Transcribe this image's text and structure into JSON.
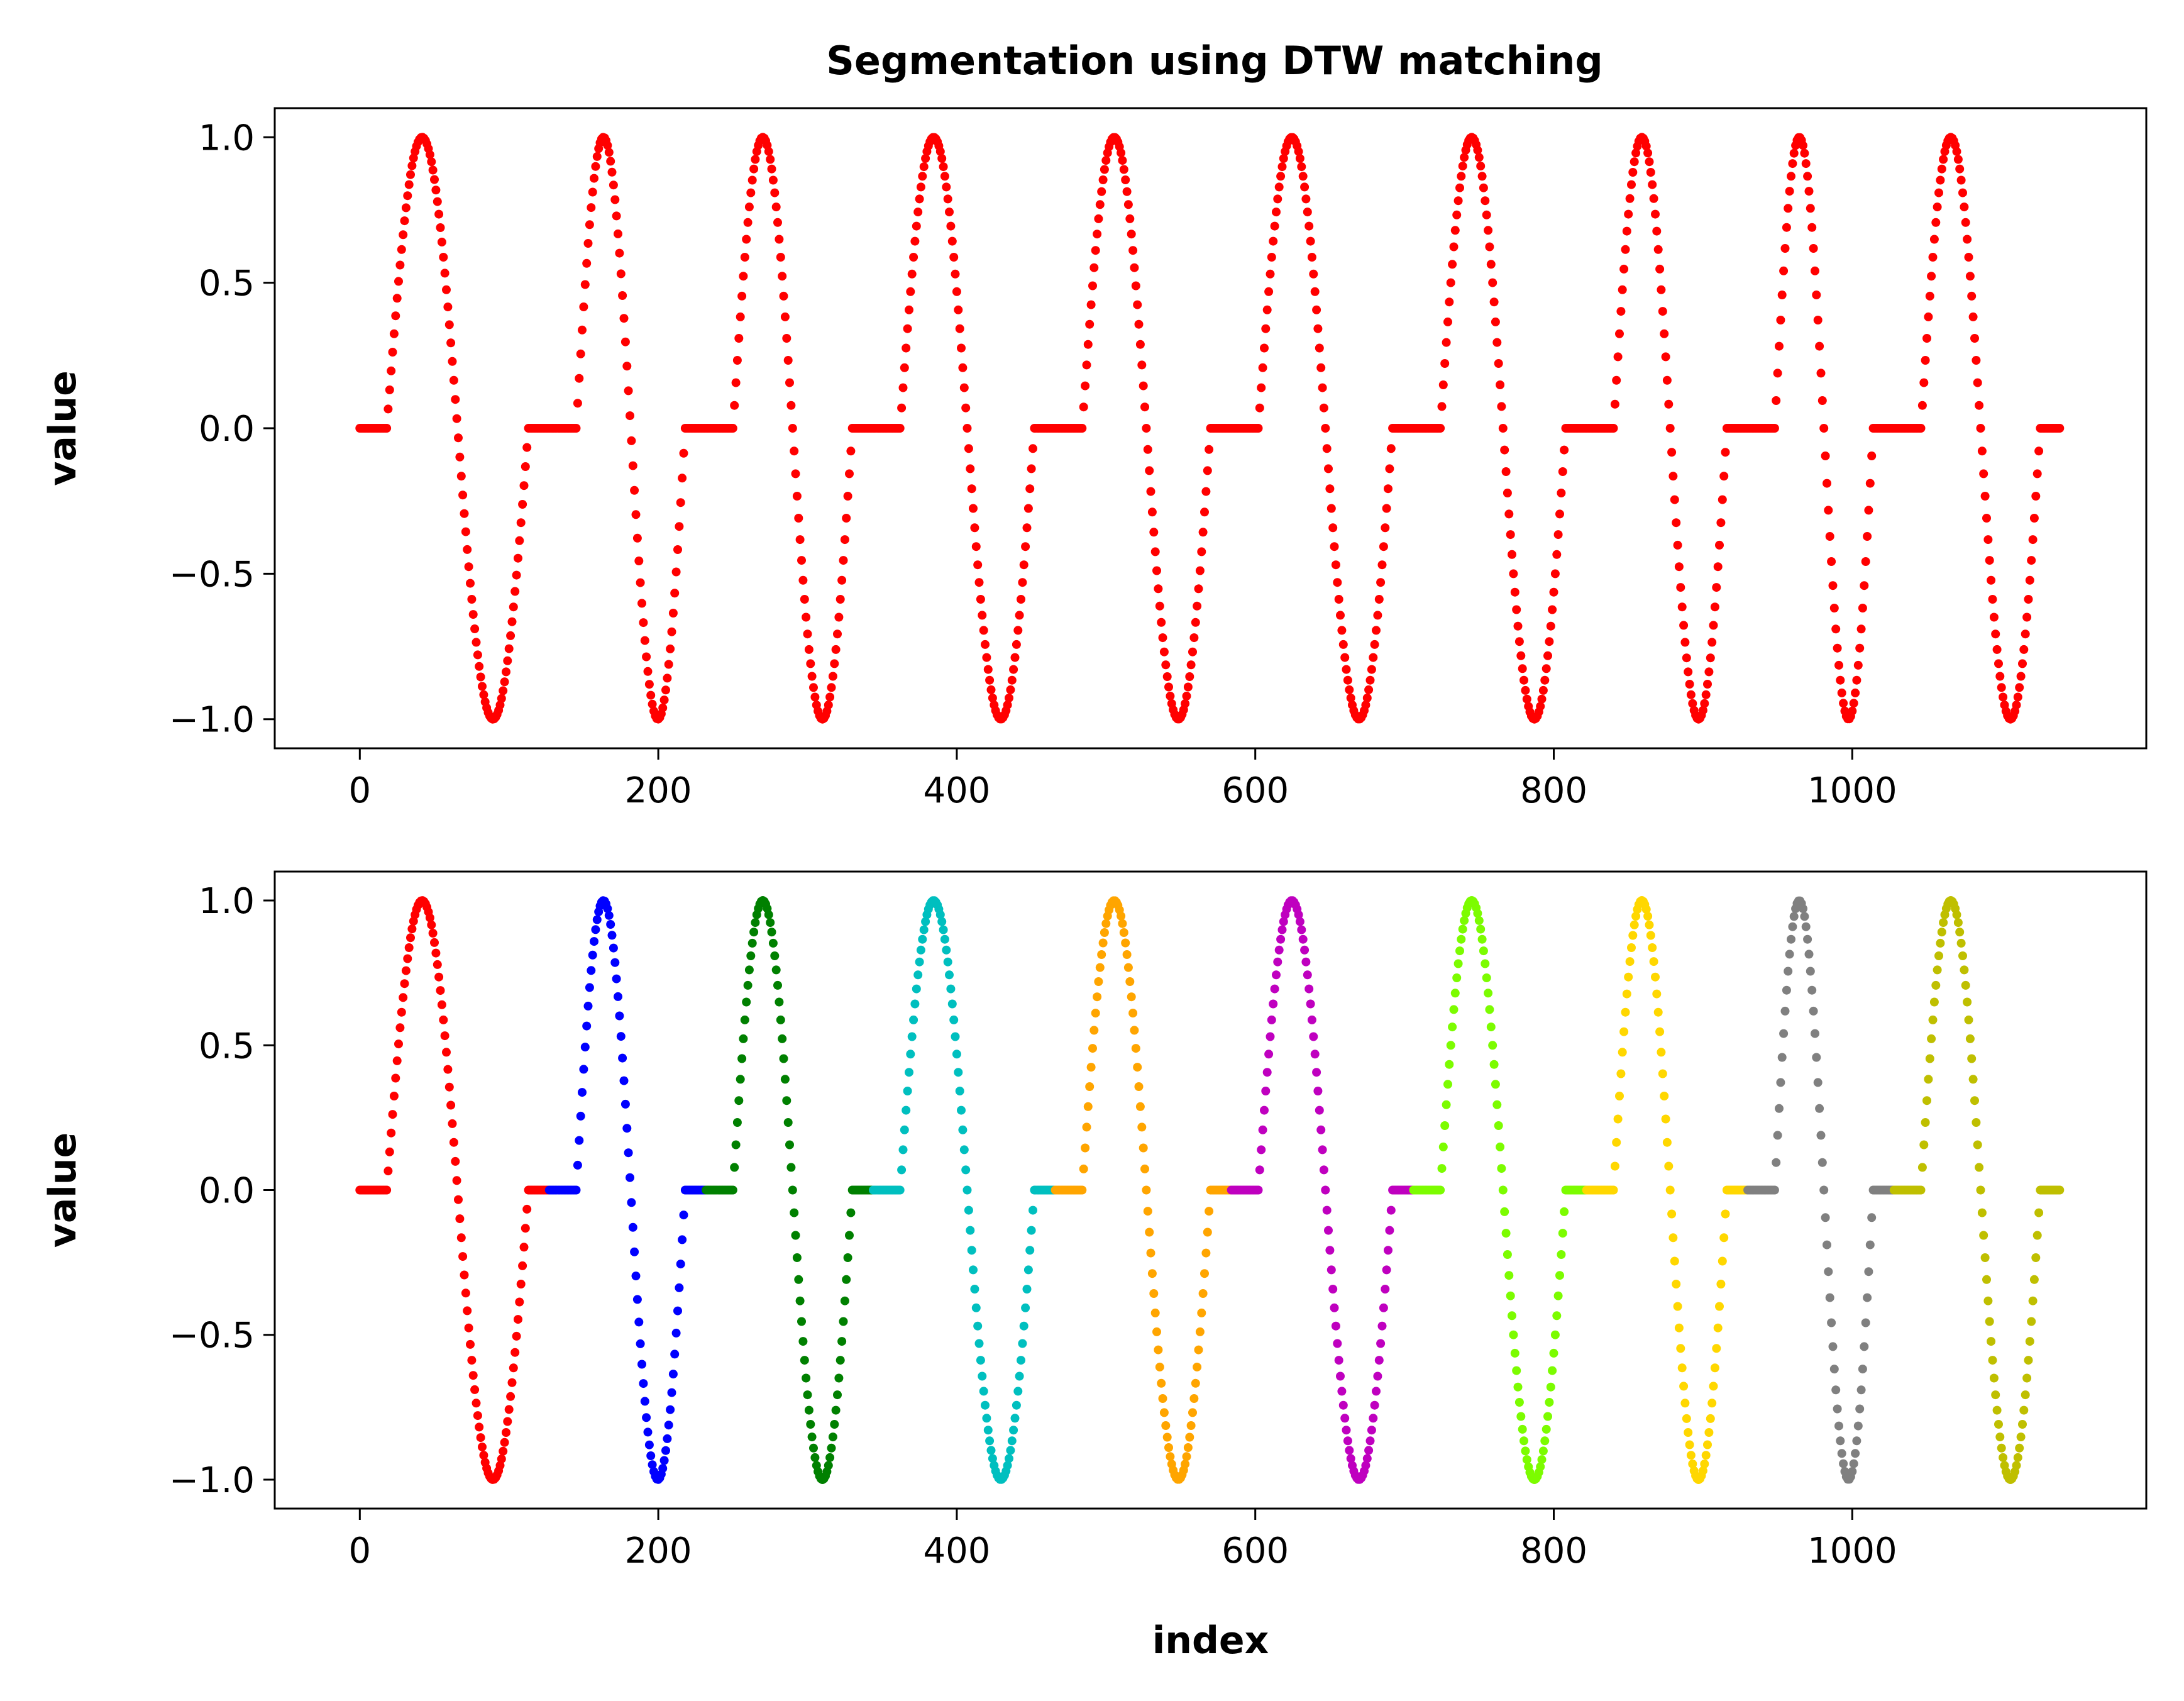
{
  "chart_data": {
    "type": "scatter",
    "title": "Segmentation using DTW matching",
    "n_segments": 10,
    "segment_template": {
      "flat_start_len": 14,
      "ramp_points": 4,
      "sine_points": 80,
      "flat_end_len": 14,
      "baseline_value": 0.0,
      "amplitude": 1.0,
      "note": "Each segment: flat 0.0 plateau, short rise, one full sine cycle (peak 1.0, trough -1.0), flat 0.0 plateau"
    },
    "segments": [
      {
        "start": 0,
        "end": 127,
        "peak_x": 38,
        "trough_x": 80,
        "color": "#ff0000"
      },
      {
        "start": 127,
        "end": 232,
        "peak_x": 147,
        "trough_x": 187,
        "color": "#0000ff"
      },
      {
        "start": 232,
        "end": 344,
        "peak_x": 252,
        "trough_x": 294,
        "color": "#008000"
      },
      {
        "start": 344,
        "end": 466,
        "peak_x": 369,
        "trough_x": 416,
        "color": "#00bfbf"
      },
      {
        "start": 466,
        "end": 584,
        "peak_x": 489,
        "trough_x": 532,
        "color": "#ffa500"
      },
      {
        "start": 584,
        "end": 706,
        "peak_x": 606,
        "trough_x": 651,
        "color": "#bf00bf"
      },
      {
        "start": 706,
        "end": 822,
        "peak_x": 731,
        "trough_x": 774,
        "color": "#7cfc00"
      },
      {
        "start": 822,
        "end": 930,
        "peak_x": 845,
        "trough_x": 883,
        "color": "#ffd700"
      },
      {
        "start": 930,
        "end": 1028,
        "peak_x": 950,
        "trough_x": 990,
        "color": "#808080"
      },
      {
        "start": 1028,
        "end": 1140,
        "peak_x": 1057,
        "trough_x": 1100,
        "color": "#bfbf00"
      }
    ],
    "subplots": [
      {
        "name": "original",
        "xlabel": "",
        "ylabel": "value",
        "coloring": "single",
        "color": "#ff0000"
      },
      {
        "name": "segmented",
        "xlabel": "index",
        "ylabel": "value",
        "coloring": "per-segment"
      }
    ],
    "xlim": [
      -57,
      1197
    ],
    "ylim": [
      -1.1,
      1.1
    ],
    "xticks": [
      0,
      200,
      400,
      600,
      800,
      1000
    ],
    "xtick_labels": [
      "0",
      "200",
      "400",
      "600",
      "800",
      "1000"
    ],
    "yticks": [
      1.0,
      0.5,
      0.0,
      -0.5,
      -1.0
    ],
    "ytick_labels": [
      "1.0",
      "0.5",
      "0.0",
      "−0.5",
      "−1.0"
    ],
    "grid": false,
    "legend": "none"
  }
}
